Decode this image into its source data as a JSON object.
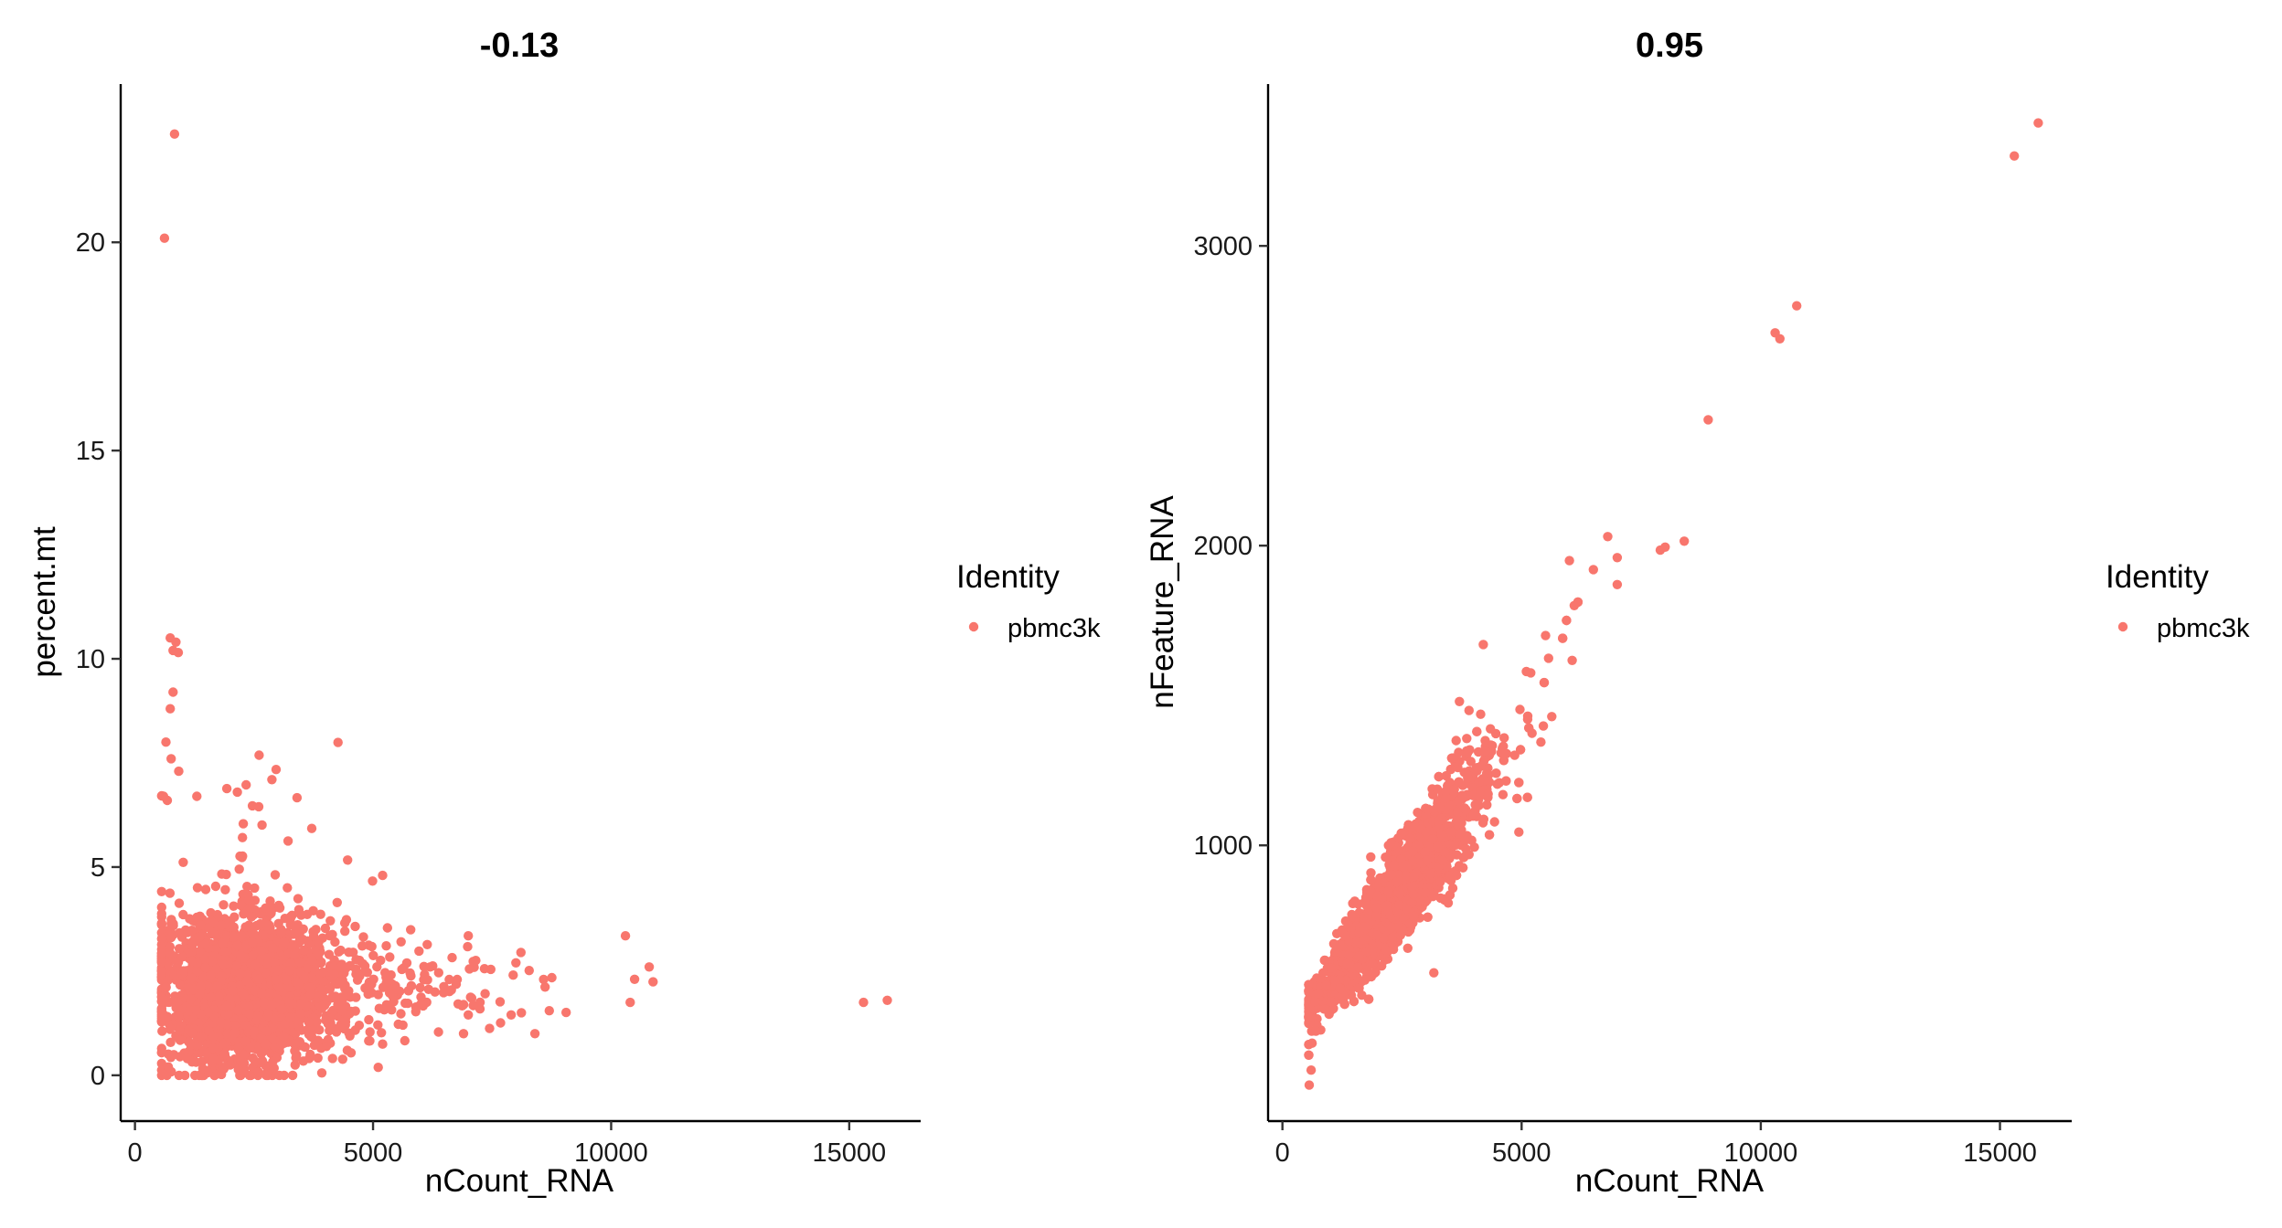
{
  "colors": {
    "point": "#F8766D",
    "axis": "#000000"
  },
  "chart_data": [
    {
      "type": "scatter",
      "title": "-0.13",
      "xlabel": "nCount_RNA",
      "ylabel": "percent.mt",
      "xlim": [
        -300,
        16500
      ],
      "ylim": [
        -1.1,
        23.8
      ],
      "xticks": [
        0,
        5000,
        10000,
        15000
      ],
      "xtick_labels": [
        "0",
        "5000",
        "10000",
        "15000"
      ],
      "yticks": [
        0,
        5,
        10,
        15,
        20
      ],
      "ytick_labels": [
        "0",
        "5",
        "10",
        "15",
        "20"
      ],
      "grid": false,
      "legend": {
        "title": "Identity",
        "entries": [
          "pbmc3k"
        ],
        "placement": "right"
      },
      "series": [
        {
          "name": "pbmc3k",
          "cluster": {
            "x_center": 2300,
            "x_spread": 850,
            "y_center": 2.0,
            "y_spread": 0.85,
            "n": 2600,
            "tail_x_to": 6500
          },
          "points": [
            [
              15800,
              1.8
            ],
            [
              15300,
              1.75
            ],
            [
              10800,
              2.6
            ],
            [
              10300,
              3.35
            ],
            [
              10400,
              1.75
            ],
            [
              8700,
              1.55
            ],
            [
              8400,
              1.0
            ],
            [
              8000,
              2.7
            ],
            [
              7900,
              1.45
            ],
            [
              7000,
              3.35
            ],
            [
              6900,
              1.0
            ],
            [
              7000,
              1.45
            ],
            [
              6600,
              2.3
            ],
            [
              6300,
              2.0
            ],
            [
              6200,
              2.6
            ],
            [
              5200,
              4.8
            ],
            [
              830,
              22.6
            ],
            [
              620,
              20.1
            ],
            [
              740,
              10.5
            ],
            [
              860,
              10.4
            ],
            [
              800,
              10.2
            ],
            [
              910,
              10.15
            ],
            [
              800,
              9.2
            ],
            [
              740,
              8.8
            ],
            [
              650,
              8.0
            ],
            [
              760,
              7.6
            ],
            [
              920,
              7.3
            ],
            [
              600,
              6.7
            ],
            [
              680,
              6.6
            ],
            [
              1300,
              6.7
            ],
            [
              2150,
              6.8
            ],
            [
              2600,
              6.45
            ],
            [
              3200,
              4.5
            ],
            [
              3800,
              3.5
            ],
            [
              4200,
              3.2
            ],
            [
              650,
              0.05
            ],
            [
              700,
              0.2
            ],
            [
              1100,
              0.4
            ],
            [
              2000,
              0.25
            ]
          ]
        }
      ]
    },
    {
      "type": "scatter",
      "title": "0.95",
      "xlabel": "nCount_RNA",
      "ylabel": "nFeature_RNA",
      "xlim": [
        -300,
        16500
      ],
      "ylim": [
        80,
        3540
      ],
      "xticks": [
        0,
        5000,
        10000,
        15000
      ],
      "xtick_labels": [
        "0",
        "5000",
        "10000",
        "15000"
      ],
      "yticks": [
        1000,
        2000,
        3000
      ],
      "ytick_labels": [
        "1000",
        "2000",
        "3000"
      ],
      "grid": false,
      "legend": {
        "title": "Identity",
        "entries": [
          "pbmc3k"
        ],
        "placement": "right"
      },
      "series": [
        {
          "name": "pbmc3k",
          "trend": {
            "slope": 0.205,
            "intercept": 340,
            "x_center": 2300,
            "x_spread": 800,
            "y_noise": 70,
            "n": 2600,
            "x_min": 550
          },
          "points": [
            [
              15800,
              3410
            ],
            [
              15300,
              3300
            ],
            [
              10750,
              2800
            ],
            [
              10300,
              2710
            ],
            [
              10400,
              2690
            ],
            [
              8900,
              2420
            ],
            [
              8400,
              2015
            ],
            [
              8000,
              1995
            ],
            [
              7900,
              1985
            ],
            [
              7000,
              1960
            ],
            [
              6800,
              2030
            ],
            [
              7000,
              1870
            ],
            [
              6500,
              1920
            ],
            [
              6000,
              1950
            ],
            [
              6100,
              1800
            ],
            [
              5500,
              1700
            ],
            [
              5100,
              1580
            ],
            [
              4200,
              1670
            ],
            [
              3900,
              1450
            ],
            [
              3700,
              1480
            ],
            [
              550,
              300
            ],
            [
              600,
              250
            ],
            [
              560,
              200
            ],
            [
              620,
              340
            ],
            [
              700,
              380
            ]
          ]
        }
      ]
    }
  ]
}
